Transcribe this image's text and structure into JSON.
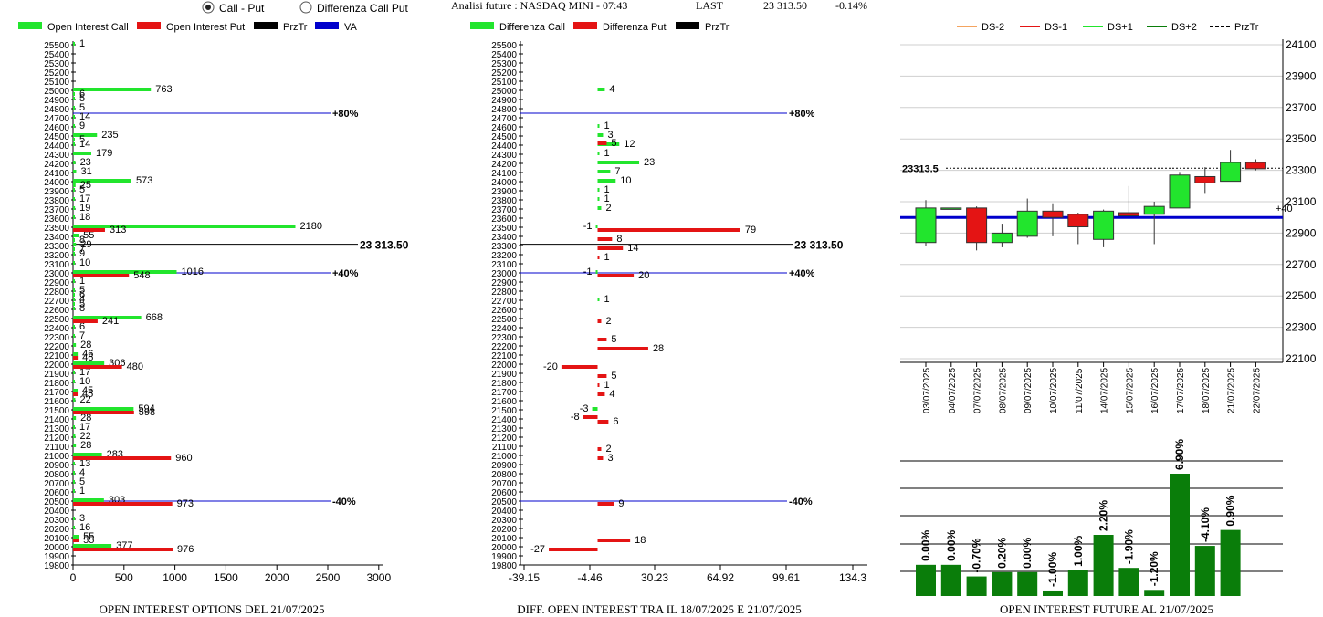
{
  "header": {
    "radio_1": "Call - Put",
    "radio_2": "Differenza Call Put",
    "title": "Analisi future : NASDAQ MINI - 07:43",
    "last_label": "LAST",
    "last_value": "23 313.50",
    "change": "-0.14%"
  },
  "chart_data": [
    {
      "type": "bar",
      "orientation": "horizontal",
      "title": "OPEN INTEREST OPTIONS DEL 21/07/2025",
      "legend": [
        "Open Interest Call",
        "Open Interest Put",
        "PrzTr",
        "VA"
      ],
      "xlim": [
        0,
        3000
      ],
      "x_ticks": [
        "0",
        "500",
        "1000",
        "1500",
        "2000",
        "2500",
        "3000"
      ],
      "strike_range": [
        19800,
        25500
      ],
      "y_tick_step": 100,
      "series": [
        {
          "name": "Open Interest Call",
          "points": [
            [
              25500,
              1
            ],
            [
              25000,
              763
            ],
            [
              24950,
              6
            ],
            [
              24900,
              5
            ],
            [
              24800,
              5
            ],
            [
              24700,
              14
            ],
            [
              24600,
              9
            ],
            [
              24500,
              235
            ],
            [
              24450,
              5
            ],
            [
              24400,
              14
            ],
            [
              24300,
              179
            ],
            [
              24200,
              23
            ],
            [
              24100,
              31
            ],
            [
              24000,
              573
            ],
            [
              23950,
              25
            ],
            [
              23900,
              5
            ],
            [
              23800,
              17
            ],
            [
              23700,
              19
            ],
            [
              23600,
              18
            ],
            [
              23500,
              2180
            ],
            [
              23400,
              55
            ],
            [
              23350,
              8
            ],
            [
              23300,
              29
            ],
            [
              23250,
              7
            ],
            [
              23200,
              9
            ],
            [
              23100,
              10
            ],
            [
              23000,
              1016
            ],
            [
              22900,
              1
            ],
            [
              22800,
              5
            ],
            [
              22750,
              6
            ],
            [
              22700,
              4
            ],
            [
              22650,
              5
            ],
            [
              22600,
              8
            ],
            [
              22500,
              668
            ],
            [
              22400,
              6
            ],
            [
              22300,
              7
            ],
            [
              22200,
              28
            ],
            [
              22100,
              46
            ],
            [
              22000,
              306
            ],
            [
              21900,
              17
            ],
            [
              21800,
              10
            ],
            [
              21700,
              45
            ],
            [
              21600,
              22
            ],
            [
              21500,
              594
            ],
            [
              21400,
              28
            ],
            [
              21300,
              17
            ],
            [
              21200,
              22
            ],
            [
              21100,
              28
            ],
            [
              21000,
              283
            ],
            [
              20900,
              13
            ],
            [
              20800,
              4
            ],
            [
              20700,
              5
            ],
            [
              20600,
              1
            ],
            [
              20500,
              303
            ],
            [
              20300,
              3
            ],
            [
              20200,
              16
            ],
            [
              20100,
              55
            ],
            [
              20000,
              377
            ]
          ]
        },
        {
          "name": "Open Interest Put",
          "points": [
            [
              23500,
              313
            ],
            [
              23000,
              548
            ],
            [
              22500,
              241
            ],
            [
              22000,
              480
            ],
            [
              21500,
              598
            ],
            [
              21000,
              960
            ],
            [
              20500,
              973
            ],
            [
              20000,
              976
            ],
            [
              22100,
              46
            ],
            [
              20100,
              55
            ],
            [
              21700,
              45
            ]
          ]
        }
      ],
      "prztr": {
        "value": 23313.5,
        "label": "23 313.50"
      },
      "va_lines": [
        {
          "strike": 24750,
          "label": "+80%"
        },
        {
          "strike": 23000,
          "label": "+40%"
        },
        {
          "strike": 20500,
          "label": "-40%"
        }
      ]
    },
    {
      "type": "bar",
      "orientation": "horizontal",
      "title": "DIFF. OPEN INTEREST TRA IL 18/07/2025 E 21/07/2025",
      "legend": [
        "Differenza Call",
        "Differenza Put",
        "PrzTr"
      ],
      "xlim": [
        -39.15,
        134.3
      ],
      "x_ticks": [
        "-39.15",
        "-4.46",
        "30.23",
        "64.92",
        "99.61",
        "134.3"
      ],
      "strike_range": [
        19800,
        25500
      ],
      "series": [
        {
          "name": "Differenza Call",
          "points": [
            [
              25000,
              4
            ],
            [
              24600,
              1
            ],
            [
              24500,
              3
            ],
            [
              24400,
              12
            ],
            [
              24300,
              1
            ],
            [
              24200,
              23
            ],
            [
              24100,
              7
            ],
            [
              24000,
              10
            ],
            [
              23900,
              1
            ],
            [
              23800,
              1
            ],
            [
              23700,
              2
            ],
            [
              23500,
              -1
            ],
            [
              23000,
              -1
            ],
            [
              22700,
              1
            ],
            [
              21500,
              -3
            ]
          ]
        },
        {
          "name": "Differenza Put",
          "points": [
            [
              24450,
              5
            ],
            [
              23500,
              79
            ],
            [
              23400,
              8
            ],
            [
              23300,
              14
            ],
            [
              23200,
              1
            ],
            [
              23000,
              20
            ],
            [
              22500,
              2
            ],
            [
              22300,
              5
            ],
            [
              22200,
              28
            ],
            [
              22000,
              -20
            ],
            [
              21900,
              5
            ],
            [
              21800,
              1
            ],
            [
              21700,
              4
            ],
            [
              21450,
              -8
            ],
            [
              21400,
              6
            ],
            [
              21100,
              2
            ],
            [
              21000,
              3
            ],
            [
              20500,
              9
            ],
            [
              20100,
              18
            ],
            [
              20000,
              -27
            ]
          ]
        }
      ],
      "prztr": {
        "value": 23313.5,
        "label": "23 313.50"
      },
      "va_lines": [
        {
          "strike": 24750,
          "label": "+80%"
        },
        {
          "strike": 23000,
          "label": "+40%"
        },
        {
          "strike": 20500,
          "label": "-40%"
        }
      ]
    },
    {
      "type": "candlestick",
      "legend": [
        "DS-2",
        "DS-1",
        "DS+1",
        "DS+2",
        "PrzTr"
      ],
      "ylim": [
        22100,
        24100
      ],
      "y_ticks": [
        "24100",
        "23900",
        "23700",
        "23500",
        "23300",
        "23100",
        "22900",
        "22700",
        "22500",
        "22300",
        "22100"
      ],
      "last_label": "23313.5",
      "va_label": "+40",
      "va_value": 23000,
      "dates": [
        "03/07/2025",
        "04/07/2025",
        "07/07/2025",
        "08/07/2025",
        "09/07/2025",
        "10/07/2025",
        "11/07/2025",
        "14/07/2025",
        "15/07/2025",
        "16/07/2025",
        "17/07/2025",
        "18/07/2025",
        "21/07/2025",
        "22/07/2025"
      ],
      "candles": [
        {
          "o": 22840,
          "c": 23060,
          "h": 23110,
          "l": 22820,
          "up": true
        },
        {
          "o": 23060,
          "c": 23060,
          "h": 23060,
          "l": 23060,
          "up": true
        },
        {
          "o": 23060,
          "c": 22840,
          "h": 23070,
          "l": 22790,
          "up": false
        },
        {
          "o": 22840,
          "c": 22900,
          "h": 22960,
          "l": 22810,
          "up": true
        },
        {
          "o": 22880,
          "c": 23040,
          "h": 23120,
          "l": 22870,
          "up": true
        },
        {
          "o": 23040,
          "c": 23000,
          "h": 23090,
          "l": 22880,
          "up": false
        },
        {
          "o": 23020,
          "c": 22940,
          "h": 23030,
          "l": 22830,
          "up": false
        },
        {
          "o": 22860,
          "c": 23040,
          "h": 23050,
          "l": 22810,
          "up": true
        },
        {
          "o": 23030,
          "c": 23010,
          "h": 23200,
          "l": 23010,
          "up": false
        },
        {
          "o": 23020,
          "c": 23070,
          "h": 23100,
          "l": 22830,
          "up": true
        },
        {
          "o": 23060,
          "c": 23270,
          "h": 23290,
          "l": 23060,
          "up": true
        },
        {
          "o": 23260,
          "c": 23220,
          "h": 23320,
          "l": 23150,
          "up": false
        },
        {
          "o": 23230,
          "c": 23350,
          "h": 23430,
          "l": 23230,
          "up": true
        },
        {
          "o": 23350,
          "c": 23310,
          "h": 23370,
          "l": 23300,
          "up": false
        }
      ]
    },
    {
      "type": "bar",
      "title": "OPEN INTEREST FUTURE AL 21/07/2025",
      "values": [
        0.0,
        0.0,
        -0.7,
        0.2,
        0.0,
        -1.0,
        1.0,
        2.2,
        -1.9,
        -1.2,
        6.9,
        -4.1,
        0.9
      ],
      "labels": [
        "0.00%",
        "0.00%",
        "-0.70%",
        "0.20%",
        "0.00%",
        "-1.00%",
        "1.00%",
        "2.20%",
        "-1.90%",
        "-1.20%",
        "6.90%",
        "-4.10%",
        "0.90%"
      ],
      "heights": [
        0.255,
        0.255,
        0.16,
        0.195,
        0.195,
        0.045,
        0.21,
        0.5,
        0.23,
        0.05,
        1.0,
        0.41,
        0.54
      ]
    }
  ],
  "colors": {
    "call": "#22e52d",
    "put": "#e41414",
    "va": "#0000cc",
    "dark_green": "#0a7d0a",
    "orange": "#f4a460"
  }
}
